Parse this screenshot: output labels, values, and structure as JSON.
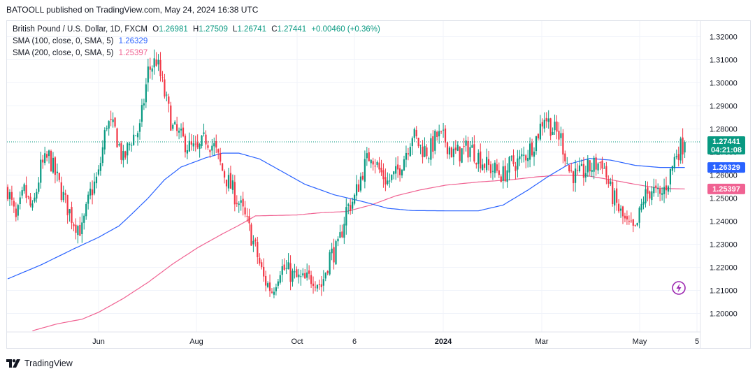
{
  "publisher": "BATOOLL published on TradingView.com, May 24, 2024 16:38 UTC",
  "legend": {
    "symbol": "British Pound / U.S. Dollar, 1D, FXCM",
    "ohlc": {
      "o_label": "O",
      "o": "1.26981",
      "h_label": "H",
      "h": "1.27509",
      "l_label": "L",
      "l": "1.26741",
      "c_label": "C",
      "c": "1.27441",
      "change": "+0.00460 (+0.36%)"
    },
    "sma100": {
      "label": "SMA (100, close, 0, SMA, 5)",
      "value": "1.26329"
    },
    "sma200": {
      "label": "SMA (200, close, 0, SMA, 5)",
      "value": "1.25397"
    }
  },
  "footer": {
    "brand": "TradingView"
  },
  "colors": {
    "up": "#089981",
    "down": "#f23645",
    "sma100": "#2962ff",
    "sma200": "#f06292",
    "grid": "#f0f3fa",
    "text": "#131722",
    "flash": "#9c27b0"
  },
  "chart_data": {
    "type": "candlestick",
    "instrument": "British Pound / U.S. Dollar",
    "timeframe": "1D",
    "x_tick_labels": [
      "Jun",
      "Aug",
      "Oct",
      "6",
      "2024",
      "Mar",
      "May",
      "5"
    ],
    "y_tick_labels": [
      "1.32000",
      "1.31000",
      "1.30000",
      "1.29000",
      "1.28000",
      "1.27000",
      "1.26000",
      "1.25000",
      "1.24000",
      "1.23000",
      "1.22000",
      "1.21000",
      "1.20000"
    ],
    "ylim": [
      1.1925,
      1.3255
    ],
    "last_price_tags": [
      {
        "value": 1.27441,
        "text": "1.27441",
        "subtext": "04:21:08",
        "color": "#089981"
      },
      {
        "value": 1.26329,
        "text": "1.26329",
        "color": "#2962ff"
      },
      {
        "value": 1.25397,
        "text": "1.25397",
        "color": "#f06292"
      }
    ],
    "price_anchors": [
      [
        0,
        1.254
      ],
      [
        4,
        1.24
      ],
      [
        8,
        1.253
      ],
      [
        12,
        1.244
      ],
      [
        16,
        1.263
      ],
      [
        20,
        1.268
      ],
      [
        24,
        1.258
      ],
      [
        28,
        1.248
      ],
      [
        32,
        1.24
      ],
      [
        36,
        1.236
      ],
      [
        40,
        1.252
      ],
      [
        44,
        1.26
      ],
      [
        48,
        1.283
      ],
      [
        52,
        1.279
      ],
      [
        56,
        1.266
      ],
      [
        60,
        1.276
      ],
      [
        64,
        1.28
      ],
      [
        68,
        1.305
      ],
      [
        72,
        1.31
      ],
      [
        76,
        1.295
      ],
      [
        80,
        1.28
      ],
      [
        84,
        1.276
      ],
      [
        88,
        1.272
      ],
      [
        92,
        1.27
      ],
      [
        96,
        1.276
      ],
      [
        100,
        1.272
      ],
      [
        104,
        1.262
      ],
      [
        108,
        1.255
      ],
      [
        112,
        1.248
      ],
      [
        116,
        1.239
      ],
      [
        120,
        1.228
      ],
      [
        124,
        1.215
      ],
      [
        128,
        1.21
      ],
      [
        132,
        1.22
      ],
      [
        136,
        1.218
      ],
      [
        140,
        1.215
      ],
      [
        144,
        1.214
      ],
      [
        148,
        1.216
      ],
      [
        152,
        1.212
      ],
      [
        156,
        1.225
      ],
      [
        160,
        1.228
      ],
      [
        164,
        1.245
      ],
      [
        168,
        1.25
      ],
      [
        172,
        1.262
      ],
      [
        176,
        1.27
      ],
      [
        180,
        1.262
      ],
      [
        184,
        1.257
      ],
      [
        188,
        1.26
      ],
      [
        192,
        1.268
      ],
      [
        196,
        1.278
      ],
      [
        200,
        1.272
      ],
      [
        204,
        1.27
      ],
      [
        208,
        1.277
      ],
      [
        212,
        1.275
      ],
      [
        216,
        1.269
      ],
      [
        220,
        1.27
      ],
      [
        224,
        1.272
      ],
      [
        228,
        1.268
      ],
      [
        232,
        1.264
      ],
      [
        236,
        1.262
      ],
      [
        240,
        1.26
      ],
      [
        244,
        1.265
      ],
      [
        248,
        1.266
      ],
      [
        252,
        1.27
      ],
      [
        256,
        1.276
      ],
      [
        260,
        1.286
      ],
      [
        264,
        1.28
      ],
      [
        268,
        1.276
      ],
      [
        272,
        1.262
      ],
      [
        276,
        1.259
      ],
      [
        280,
        1.262
      ],
      [
        284,
        1.264
      ],
      [
        288,
        1.266
      ],
      [
        292,
        1.253
      ],
      [
        296,
        1.245
      ],
      [
        300,
        1.238
      ],
      [
        304,
        1.235
      ],
      [
        308,
        1.25
      ],
      [
        312,
        1.254
      ],
      [
        316,
        1.25
      ],
      [
        320,
        1.258
      ],
      [
        324,
        1.27
      ],
      [
        328,
        1.274
      ]
    ],
    "sma100_anchors": [
      [
        0,
        1.215
      ],
      [
        16,
        1.221
      ],
      [
        32,
        1.228
      ],
      [
        44,
        1.233
      ],
      [
        54,
        1.238
      ],
      [
        60,
        1.243
      ],
      [
        68,
        1.25
      ],
      [
        76,
        1.258
      ],
      [
        84,
        1.2635
      ],
      [
        96,
        1.2675
      ],
      [
        104,
        1.2695
      ],
      [
        112,
        1.2695
      ],
      [
        122,
        1.267
      ],
      [
        132,
        1.262
      ],
      [
        144,
        1.256
      ],
      [
        158,
        1.2515
      ],
      [
        172,
        1.2485
      ],
      [
        184,
        1.2456
      ],
      [
        196,
        1.2446
      ],
      [
        212,
        1.2445
      ],
      [
        228,
        1.2445
      ],
      [
        240,
        1.247
      ],
      [
        252,
        1.2535
      ],
      [
        262,
        1.2595
      ],
      [
        272,
        1.2648
      ],
      [
        282,
        1.2672
      ],
      [
        292,
        1.2665
      ],
      [
        304,
        1.2642
      ],
      [
        316,
        1.2633
      ],
      [
        328,
        1.2633
      ]
    ],
    "sma200_anchors": [
      [
        12,
        1.1925
      ],
      [
        24,
        1.1955
      ],
      [
        36,
        1.1975
      ],
      [
        44,
        1.2005
      ],
      [
        56,
        1.2065
      ],
      [
        68,
        1.2135
      ],
      [
        80,
        1.2215
      ],
      [
        92,
        1.2285
      ],
      [
        104,
        1.2345
      ],
      [
        112,
        1.2382
      ],
      [
        120,
        1.2423
      ],
      [
        140,
        1.2427
      ],
      [
        152,
        1.2437
      ],
      [
        164,
        1.2442
      ],
      [
        176,
        1.247
      ],
      [
        188,
        1.251
      ],
      [
        200,
        1.2536
      ],
      [
        212,
        1.2556
      ],
      [
        228,
        1.257
      ],
      [
        244,
        1.258
      ],
      [
        256,
        1.2592
      ],
      [
        268,
        1.26
      ],
      [
        280,
        1.2598
      ],
      [
        292,
        1.258
      ],
      [
        304,
        1.256
      ],
      [
        316,
        1.2542
      ],
      [
        328,
        1.254
      ]
    ]
  }
}
